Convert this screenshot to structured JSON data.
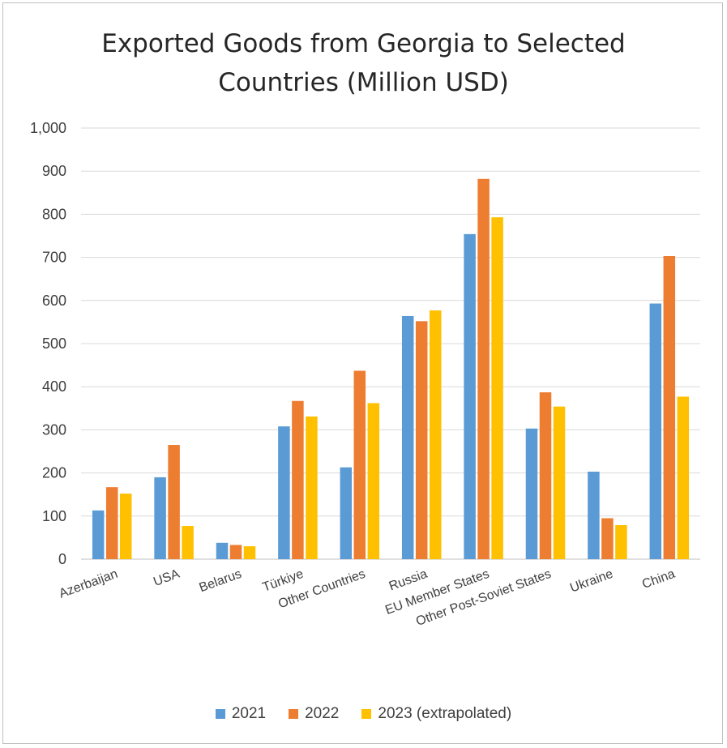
{
  "chart_data": {
    "type": "bar",
    "title_lines": [
      "Exported Goods from Georgia to Selected",
      "Countries (Million USD)"
    ],
    "categories": [
      "Azerbaijan",
      "USA",
      "Belarus",
      "Türkiye",
      "Other Countries",
      "Russia",
      "EU Member States",
      "Other Post-Soviet States",
      "Ukraine",
      "China"
    ],
    "series": [
      {
        "name": "2021",
        "color": "#5B9BD5",
        "values": [
          113,
          190,
          38,
          308,
          213,
          564,
          754,
          303,
          203,
          593
        ]
      },
      {
        "name": "2022",
        "color": "#ED7D31",
        "values": [
          167,
          265,
          33,
          367,
          437,
          552,
          882,
          387,
          95,
          703
        ]
      },
      {
        "name": "2023 (extrapolated)",
        "color": "#FFC000",
        "values": [
          152,
          77,
          30,
          331,
          362,
          577,
          793,
          354,
          79,
          377
        ]
      }
    ],
    "ylim": [
      0,
      1000
    ],
    "yticks": [
      "0",
      "100",
      "200",
      "300",
      "400",
      "500",
      "600",
      "700",
      "800",
      "900",
      "1,000"
    ],
    "grid": true,
    "legend_position": "bottom"
  }
}
